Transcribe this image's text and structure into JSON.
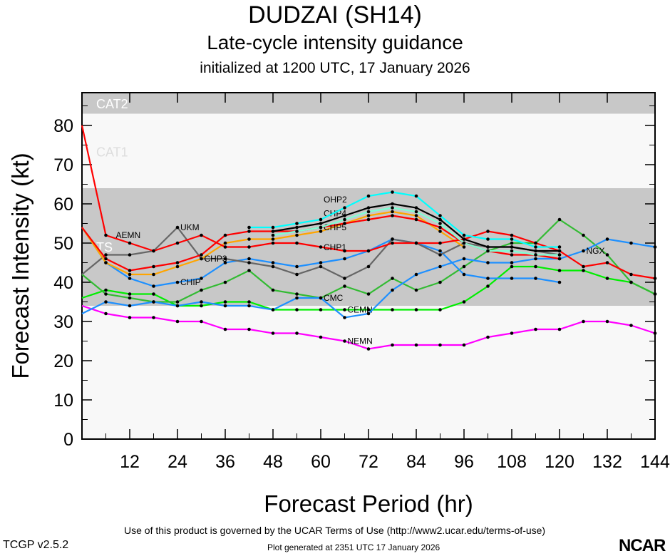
{
  "title": "DUDZAI (SH14)",
  "subtitle": "Late-cycle intensity guidance",
  "initialized": "initialized at 1200 UTC, 17 January 2026",
  "footer": {
    "terms": "Use of this product is governed by the UCAR Terms of Use (http://www2.ucar.edu/terms-of-use)",
    "generated": "Plot generated at 2351 UTC   17 January 2026",
    "version": "TCGP v2.5.2",
    "logo": "NCAR"
  },
  "chart_data": {
    "type": "line",
    "xlabel": "Forecast Period (hr)",
    "ylabel": "Forecast Intensity (kt)",
    "xlim": [
      0,
      144
    ],
    "ylim": [
      0,
      83
    ],
    "xticks": [
      12,
      24,
      36,
      48,
      60,
      72,
      84,
      96,
      108,
      120,
      132,
      144
    ],
    "yticks": [
      0,
      10,
      20,
      30,
      40,
      50,
      60,
      70,
      80
    ],
    "bands": [
      {
        "label": "CAT2",
        "from": 83,
        "to": 96,
        "color": "#c8c8c8"
      },
      {
        "label": "CAT1",
        "from": 64,
        "to": 83,
        "color": "#f8f8f8"
      },
      {
        "label": "TS",
        "from": 34,
        "to": 64,
        "color": "#c8c8c8"
      },
      {
        "label": "",
        "from": 0,
        "to": 34,
        "color": "#f8f8f8"
      }
    ],
    "series": [
      {
        "name": "NEMN",
        "color": "#ff00ff",
        "label_at": 66,
        "x": [
          0,
          6,
          12,
          18,
          24,
          30,
          36,
          42,
          48,
          54,
          60,
          66,
          72,
          78,
          84,
          90,
          96,
          102,
          108,
          114,
          120,
          126,
          132,
          138,
          144
        ],
        "values": [
          34,
          32,
          31,
          31,
          30,
          30,
          28,
          28,
          27,
          27,
          26,
          25,
          23,
          24,
          24,
          24,
          24,
          26,
          27,
          28,
          28,
          30,
          30,
          29,
          27
        ]
      },
      {
        "name": "CEMN",
        "color": "#00ee00",
        "label_at": 66,
        "x": [
          0,
          6,
          12,
          18,
          24,
          30,
          36,
          42,
          48,
          54,
          60,
          66,
          72,
          78,
          84,
          90,
          96,
          102,
          108,
          114,
          120,
          126,
          132,
          138,
          144
        ],
        "values": [
          36,
          38,
          37,
          37,
          34,
          34,
          35,
          35,
          33,
          33,
          33,
          33,
          33,
          33,
          33,
          33,
          35,
          39,
          44,
          44,
          43,
          43,
          41,
          40,
          37
        ]
      },
      {
        "name": "CMC",
        "color": "#33bb33",
        "label_at": 60,
        "x": [
          0,
          6,
          12,
          18,
          24,
          30,
          36,
          42,
          48,
          54,
          60,
          66,
          72,
          78,
          84,
          90,
          96,
          102,
          108,
          114,
          120,
          126,
          132,
          138,
          144
        ],
        "values": [
          42,
          37,
          36,
          35,
          35,
          38,
          40,
          43,
          38,
          37,
          36,
          39,
          37,
          41,
          38,
          40,
          44,
          48,
          50,
          50,
          56,
          52,
          47,
          40,
          37
        ]
      },
      {
        "name": "NGX",
        "color": "#1e90ff",
        "label_at": 126,
        "x": [
          0,
          6,
          12,
          18,
          24,
          30,
          36,
          42,
          48,
          54,
          60,
          66,
          72,
          78,
          84,
          90,
          96,
          102,
          108,
          114,
          120,
          126,
          132,
          138,
          144
        ],
        "values": [
          32,
          35,
          34,
          35,
          34,
          35,
          34,
          34,
          33,
          36,
          36,
          31,
          32,
          38,
          42,
          44,
          46,
          45,
          45,
          46,
          46,
          48,
          51,
          50,
          49
        ]
      },
      {
        "name": "CHIP",
        "color": "#1e90ff",
        "label_at": 24,
        "x": [
          0,
          6,
          12,
          18,
          24,
          30,
          36,
          42,
          48,
          54,
          60,
          66,
          72,
          78,
          84,
          90,
          96,
          102,
          108,
          114,
          120
        ],
        "values": [
          54,
          45,
          41,
          39,
          40,
          41,
          45,
          46,
          45,
          44,
          45,
          46,
          48,
          51,
          50,
          48,
          42,
          41,
          41,
          41,
          40
        ]
      },
      {
        "name": "UKM",
        "color": "#666666",
        "label_at": 24,
        "x": [
          0,
          6,
          12,
          18,
          24,
          30,
          36,
          42,
          48,
          54,
          60,
          66,
          72,
          78,
          84,
          90,
          96,
          102,
          108,
          114,
          120
        ],
        "values": [
          42,
          47,
          47,
          48,
          54,
          46,
          46,
          45,
          44,
          42,
          44,
          41,
          44,
          51,
          50,
          47,
          50,
          49,
          49,
          48,
          47
        ]
      },
      {
        "name": "CHP3",
        "color": "#ffa500",
        "label_at": 30,
        "x": [
          0,
          6,
          12,
          18,
          24,
          30,
          36,
          42,
          48,
          54,
          60,
          66,
          72,
          78,
          84,
          90,
          96
        ],
        "values": [
          54,
          45,
          42,
          42,
          44,
          46,
          50,
          51,
          51,
          52,
          53,
          55,
          57,
          58,
          57,
          53,
          49
        ]
      },
      {
        "name": "AEMN",
        "color": "#ff0000",
        "label_at": 6,
        "x": [
          0,
          6,
          12,
          18,
          24,
          30,
          36,
          42,
          48,
          54,
          60,
          66,
          72,
          78,
          84,
          90,
          96,
          102,
          108,
          114,
          120,
          126,
          132,
          138,
          144
        ],
        "values": [
          80,
          52,
          50,
          48,
          50,
          52,
          49,
          49,
          50,
          50,
          49,
          48,
          48,
          50,
          50,
          50,
          51,
          53,
          52,
          50,
          48,
          44,
          45,
          42,
          41
        ]
      },
      {
        "name": "CHP5",
        "color": "#ff0000",
        "label_at": 60,
        "x": [
          0,
          6,
          12,
          18,
          24,
          30,
          36,
          42,
          48,
          54,
          60,
          66,
          72,
          78,
          84,
          90,
          96,
          102,
          108,
          114,
          120
        ],
        "values": [
          54,
          46,
          43,
          44,
          45,
          47,
          52,
          53,
          53,
          53,
          54,
          55,
          56,
          57,
          56,
          54,
          50,
          48,
          47,
          47,
          46
        ]
      },
      {
        "name": "CHP4",
        "color": "#000000",
        "label_at": 60,
        "x": [
          48,
          54,
          60,
          66,
          72,
          78,
          84,
          90,
          96,
          102,
          108,
          114,
          120
        ],
        "values": [
          53,
          54,
          55,
          57,
          59,
          60,
          59,
          56,
          51,
          49,
          49,
          48,
          48
        ]
      },
      {
        "name": "CHP1",
        "color": "#7fffd4",
        "label_at": 60,
        "x": [
          48,
          54,
          60,
          66,
          72,
          78,
          84,
          90,
          96,
          102,
          108,
          114,
          120
        ],
        "values": [
          52,
          53,
          54,
          56,
          58,
          59,
          58,
          55,
          50,
          48,
          48,
          47,
          47
        ]
      },
      {
        "name": "OHP2",
        "color": "#00ffff",
        "label_at": 60,
        "x": [
          42,
          48,
          54,
          60,
          66,
          72,
          78,
          84,
          90,
          96,
          102,
          108,
          114,
          120
        ],
        "values": [
          54,
          54,
          55,
          56,
          59,
          62,
          63,
          62,
          57,
          52,
          51,
          51,
          49,
          49
        ]
      }
    ]
  }
}
